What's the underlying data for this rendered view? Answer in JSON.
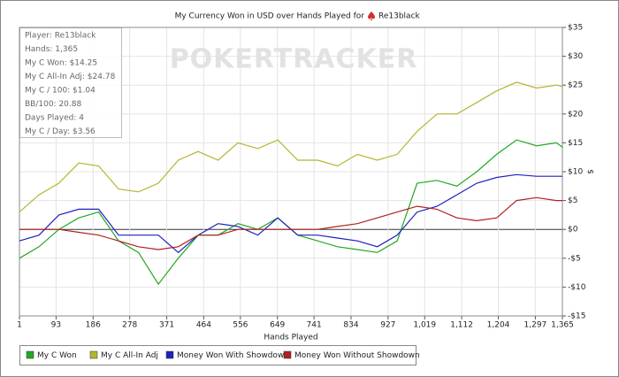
{
  "chart_data": {
    "type": "line",
    "title": "My Currency Won in USD over Hands Played for",
    "player_name": "Re13black",
    "watermark": "POKERTRACKER",
    "x_label": "Hands Played",
    "y_label": "$",
    "stats": [
      "Player: Re13black",
      "Hands: 1,365",
      "My C Won: $14.25",
      "My C All-In Adj: $24.78",
      "My C / 100: $1.04",
      "BB/100: 20.88",
      "Days Played: 4",
      "My C / Day: $3.56"
    ],
    "x": [
      1,
      50,
      100,
      150,
      200,
      250,
      300,
      350,
      400,
      450,
      500,
      550,
      600,
      650,
      700,
      750,
      800,
      850,
      900,
      950,
      1000,
      1050,
      1100,
      1150,
      1200,
      1250,
      1300,
      1350,
      1365
    ],
    "series": [
      {
        "name": "My C Won",
        "color": "#22a822",
        "values": [
          -5,
          -3,
          0,
          2,
          3,
          -2,
          -4,
          -9.5,
          -5,
          -1,
          -1,
          1,
          0,
          2,
          -1,
          -2,
          -3,
          -3.5,
          -4,
          -2,
          8,
          8.5,
          7.5,
          10,
          13,
          15.5,
          14.5,
          15,
          14.25
        ]
      },
      {
        "name": "My C All-In Adj",
        "color": "#b5b530",
        "values": [
          3,
          6,
          8,
          11.5,
          11,
          7,
          6.5,
          8,
          12,
          13.5,
          12,
          15,
          14,
          15.5,
          12,
          12,
          11,
          13,
          12,
          13,
          17,
          20,
          20,
          22,
          24,
          25.5,
          24.5,
          25,
          24.78
        ]
      },
      {
        "name": "Money Won With Showdown",
        "color": "#2020c0",
        "values": [
          -2,
          -1,
          2.5,
          3.5,
          3.5,
          -1,
          -1,
          -1,
          -4,
          -1,
          1,
          0.5,
          -1,
          2,
          -1,
          -1,
          -1.5,
          -2,
          -3,
          -1,
          3,
          4,
          6,
          8,
          9,
          9.5,
          9.2,
          9.2,
          9.2
        ]
      },
      {
        "name": "Money Won Without Showdown",
        "color": "#b02020",
        "values": [
          0,
          0,
          0,
          -0.5,
          -1,
          -2,
          -3,
          -3.5,
          -3,
          -1,
          -1,
          0,
          0,
          0,
          0,
          0,
          0.5,
          1,
          2,
          3,
          4,
          3.5,
          2,
          1.5,
          2,
          5,
          5.5,
          5,
          5
        ]
      }
    ],
    "xlim": [
      1,
      1365
    ],
    "xticks": [
      1,
      93,
      186,
      278,
      371,
      464,
      556,
      649,
      741,
      834,
      927,
      {
        "value": 1019,
        "label": "1,019"
      },
      {
        "value": 1112,
        "label": "1,112"
      },
      {
        "value": 1204,
        "label": "1,204"
      },
      {
        "value": 1297,
        "label": "1,297"
      },
      {
        "value": 1365,
        "label": "1,365"
      }
    ],
    "ylim": [
      -15,
      35
    ],
    "yticks": [
      {
        "value": -15,
        "label": "-$15"
      },
      {
        "value": -10,
        "label": "-$10"
      },
      {
        "value": -5,
        "label": "-$5"
      },
      {
        "value": 0,
        "label": "$0"
      },
      {
        "value": 5,
        "label": "$5"
      },
      {
        "value": 10,
        "label": "$10"
      },
      {
        "value": 15,
        "label": "$15"
      },
      {
        "value": 20,
        "label": "$20"
      },
      {
        "value": 25,
        "label": "$25"
      },
      {
        "value": 30,
        "label": "$30"
      },
      {
        "value": 35,
        "label": "$35"
      }
    ],
    "grid": true
  }
}
